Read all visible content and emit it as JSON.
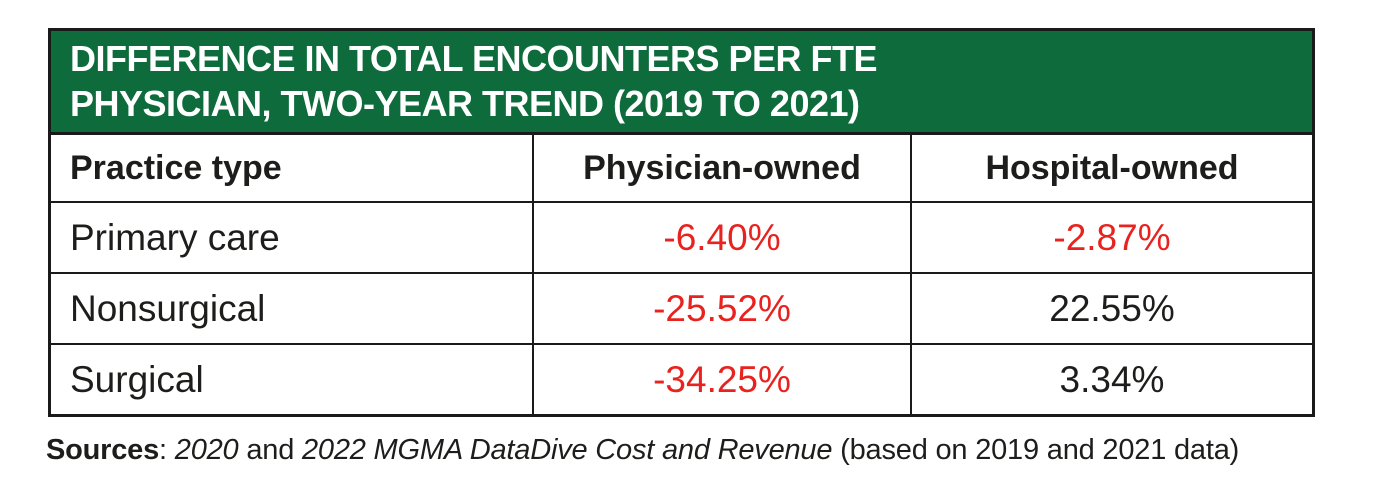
{
  "colors": {
    "header_bg": "#0e6b3c",
    "header_text": "#ffffff",
    "border": "#1a1a1a",
    "text": "#1d1d1b",
    "negative": "#e8231f"
  },
  "header": {
    "line1": "DIFFERENCE IN TOTAL ENCOUNTERS PER FTE",
    "line2": "PHYSICIAN, TWO-YEAR TREND (2019 TO 2021)"
  },
  "table": {
    "col_headers": [
      "Practice type",
      "Physician-owned",
      "Hospital-owned"
    ],
    "rows": [
      {
        "label": "Primary care",
        "values": [
          "-6.40%",
          "-2.87%"
        ]
      },
      {
        "label": "Nonsurgical",
        "values": [
          "-25.52%",
          "22.55%"
        ]
      },
      {
        "label": "Surgical",
        "values": [
          "-34.25%",
          "3.34%"
        ]
      }
    ]
  },
  "source": {
    "label": "Sources",
    "separator": ": ",
    "italic1": "2020",
    "plain1": " and ",
    "italic2": "2022 MGMA DataDive Cost and Revenue",
    "plain2": " (based on 2019 and 2021 data)"
  },
  "chart_data": {
    "type": "table",
    "title": "DIFFERENCE IN TOTAL ENCOUNTERS PER FTE PHYSICIAN, TWO-YEAR TREND (2019 TO 2021)",
    "columns": [
      "Practice type",
      "Physician-owned",
      "Hospital-owned"
    ],
    "rows": [
      [
        "Primary care",
        -6.4,
        -2.87
      ],
      [
        "Nonsurgical",
        -25.52,
        22.55
      ],
      [
        "Surgical",
        -34.25,
        3.34
      ]
    ],
    "units": "percent",
    "negative_values_shown_in_red": true,
    "source": "Sources: 2020 and 2022 MGMA DataDive Cost and Revenue (based on 2019 and 2021 data)"
  }
}
